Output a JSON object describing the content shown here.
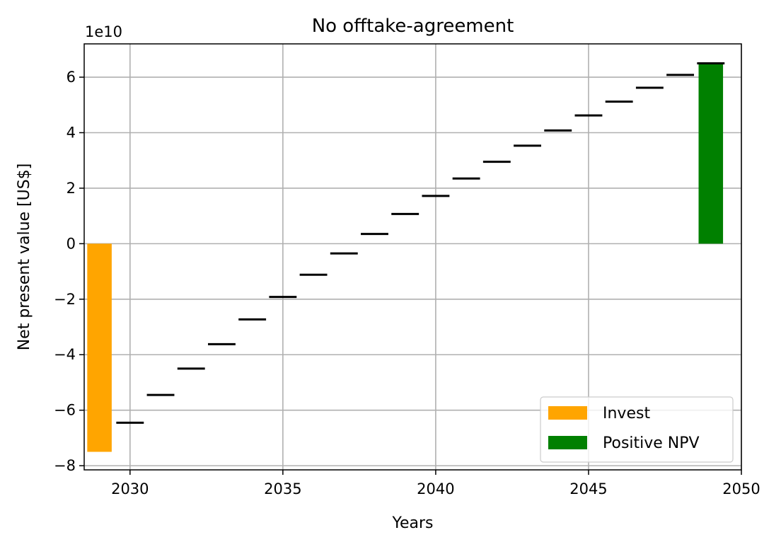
{
  "chart_data": {
    "type": "bar",
    "title": "No offtake-agreement",
    "xlabel": "Years",
    "ylabel": "Net present value [US$]",
    "y_scale_label": "1e10",
    "xlim": [
      2028.5,
      2050
    ],
    "ylim": [
      -8.15,
      7.2
    ],
    "x_ticks": [
      2030,
      2035,
      2040,
      2045,
      2050
    ],
    "y_ticks": [
      -8,
      -6,
      -4,
      -2,
      0,
      2,
      4,
      6
    ],
    "y_tick_labels": [
      "−8",
      "−6",
      "−4",
      "−2",
      "0",
      "2",
      "4",
      "6"
    ],
    "grid": true,
    "legend_position": "lower right",
    "legend": [
      {
        "label": "Invest",
        "color": "#FFA500"
      },
      {
        "label": "Positive NPV",
        "color": "#008000"
      }
    ],
    "series": [
      {
        "name": "Invest",
        "color": "#FFA500",
        "x": [
          2029
        ],
        "values": [
          -7.5
        ]
      },
      {
        "name": "Positive NPV",
        "color": "#008000",
        "x": [
          2049
        ],
        "values": [
          6.5
        ]
      }
    ],
    "cumulative_npv_markers": {
      "color": "#000000",
      "x": [
        2030,
        2031,
        2032,
        2033,
        2034,
        2035,
        2036,
        2037,
        2038,
        2039,
        2040,
        2041,
        2042,
        2043,
        2044,
        2045,
        2046,
        2047,
        2048,
        2049
      ],
      "values": [
        -6.45,
        -5.45,
        -4.5,
        -3.62,
        -2.73,
        -1.92,
        -1.12,
        -0.35,
        0.35,
        1.07,
        1.72,
        2.35,
        2.95,
        3.53,
        4.08,
        4.62,
        5.12,
        5.62,
        6.08,
        6.5
      ]
    }
  }
}
